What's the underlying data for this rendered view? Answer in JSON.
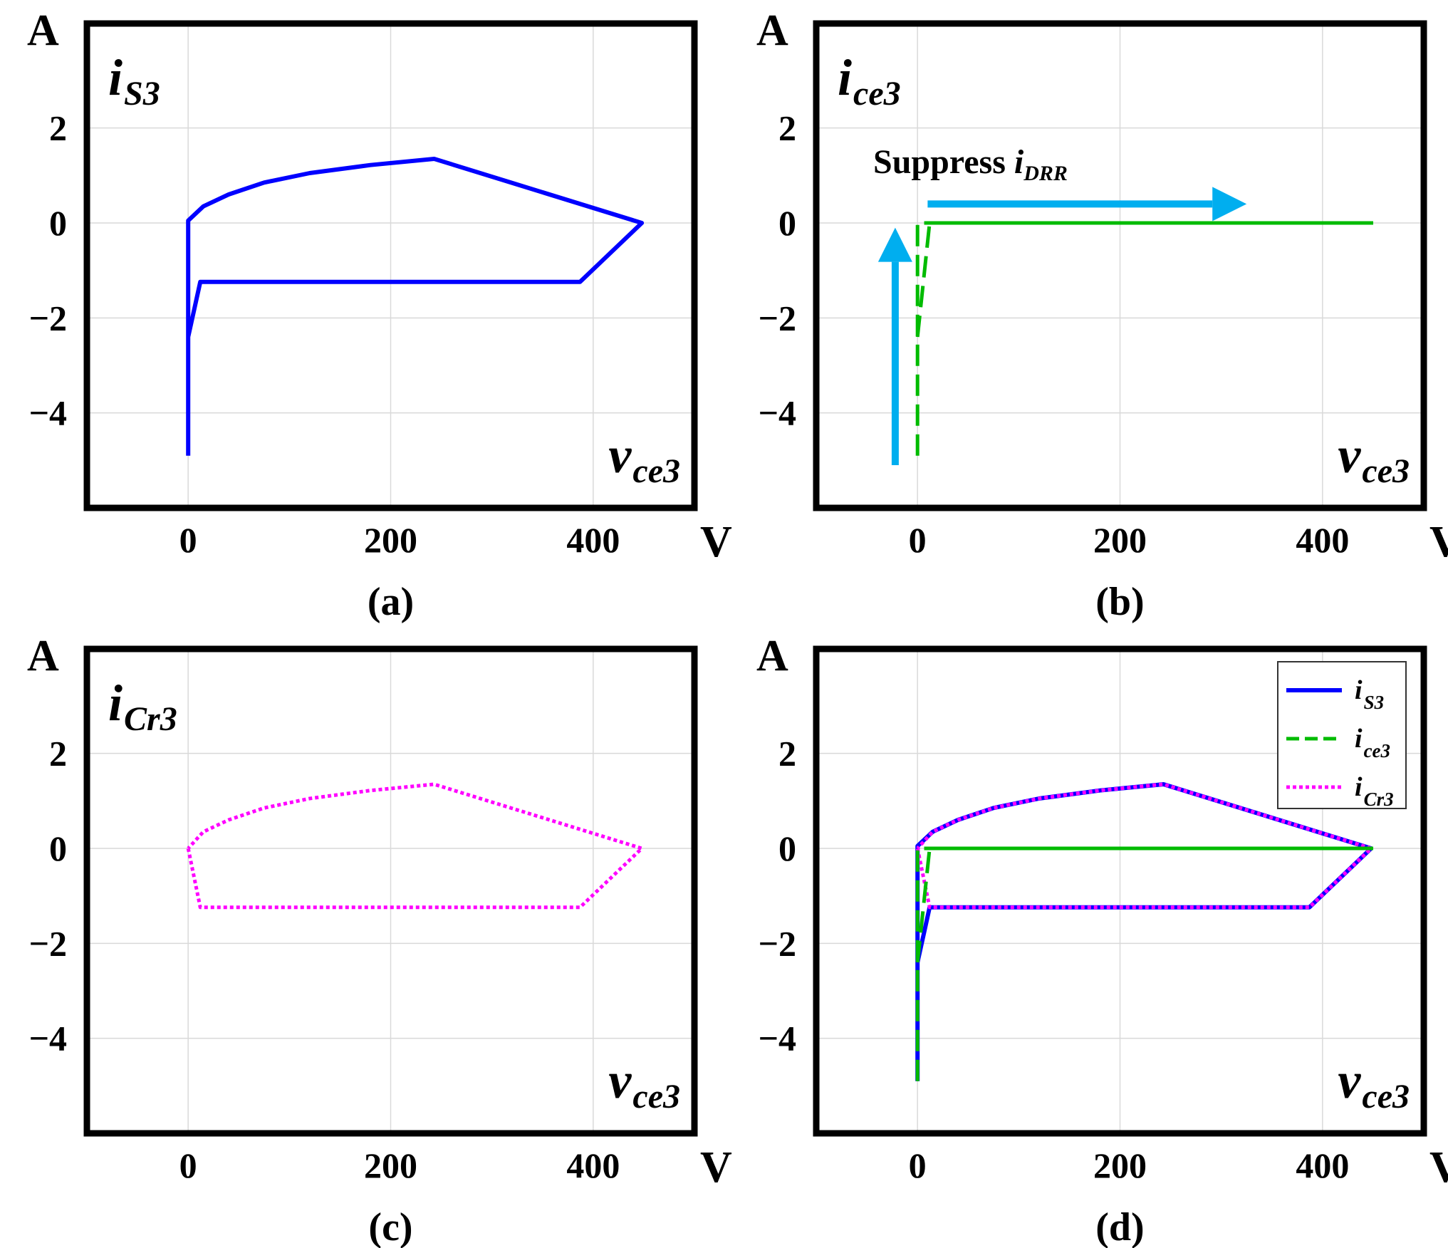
{
  "colors": {
    "i_S3": "#0000FF",
    "i_ce3": "#00BB00",
    "i_Cr3": "#FF00FF",
    "arrow": "#00AEEF"
  },
  "chart_data": [
    {
      "id": "a",
      "type": "line",
      "caption": "(a)",
      "y_unit": "A",
      "x_unit": "V",
      "xlim": [
        -100,
        500
      ],
      "ylim": [
        -6,
        4.2
      ],
      "x_ticks": [
        0,
        200,
        400
      ],
      "x_tick_labels": [
        "0",
        "200",
        "400"
      ],
      "y_ticks": [
        2,
        0,
        -2,
        -4
      ],
      "y_tick_labels": [
        "2",
        "0",
        "−2",
        "−4"
      ],
      "grid": true,
      "ylabel": {
        "main": "i",
        "sub": "S3"
      },
      "xlabel": {
        "main": "v",
        "sub": "ce3"
      },
      "series": [
        {
          "name": "i_S3",
          "style": "solid",
          "color_key": "i_S3",
          "x": [
            0,
            0,
            12,
            387,
            448,
            243,
            180,
            120,
            75,
            40,
            15,
            0,
            0
          ],
          "y": [
            -4.9,
            -2.4,
            -1.24,
            -1.24,
            0,
            1.35,
            1.22,
            1.05,
            0.85,
            0.6,
            0.35,
            0.05,
            -4.9
          ]
        }
      ]
    },
    {
      "id": "b",
      "type": "line",
      "caption": "(b)",
      "y_unit": "A",
      "x_unit": "V",
      "xlim": [
        -100,
        500
      ],
      "ylim": [
        -6,
        4.2
      ],
      "x_ticks": [
        0,
        200,
        400
      ],
      "x_tick_labels": [
        "0",
        "200",
        "400"
      ],
      "y_ticks": [
        2,
        0,
        -2,
        -4
      ],
      "y_tick_labels": [
        "2",
        "0",
        "−2",
        "−4"
      ],
      "grid": true,
      "ylabel": {
        "main": "i",
        "sub": "ce3"
      },
      "xlabel": {
        "main": "v",
        "sub": "ce3"
      },
      "annotation": {
        "text": "Suppress",
        "main": "i",
        "sub": "DRR"
      },
      "arrows": [
        {
          "name": "vertical-arrow",
          "from": [
            -22,
            -5.1
          ],
          "to": [
            -22,
            -0.1
          ]
        },
        {
          "name": "horizontal-arrow",
          "from": [
            10,
            0.4
          ],
          "to": [
            325,
            0.4
          ]
        }
      ],
      "series": [
        {
          "name": "i_ce3",
          "style": "dashed",
          "color_key": "i_ce3",
          "x": [
            0,
            0,
            450
          ],
          "y": [
            -4.9,
            0,
            0
          ]
        },
        {
          "name": "i_ce3",
          "style": "dashed",
          "color_key": "i_ce3",
          "x": [
            0,
            12,
            450
          ],
          "y": [
            -2.4,
            0,
            0
          ]
        }
      ]
    },
    {
      "id": "c",
      "type": "line",
      "caption": "(c)",
      "y_unit": "A",
      "x_unit": "V",
      "xlim": [
        -100,
        500
      ],
      "ylim": [
        -6,
        4.2
      ],
      "x_ticks": [
        0,
        200,
        400
      ],
      "x_tick_labels": [
        "0",
        "200",
        "400"
      ],
      "y_ticks": [
        2,
        0,
        -2,
        -4
      ],
      "y_tick_labels": [
        "2",
        "0",
        "−2",
        "−4"
      ],
      "grid": true,
      "ylabel": {
        "main": "i",
        "sub": "Cr3"
      },
      "xlabel": {
        "main": "v",
        "sub": "ce3"
      },
      "series": [
        {
          "name": "i_Cr3",
          "style": "dotted",
          "color_key": "i_Cr3",
          "x": [
            0,
            12,
            387,
            448,
            243,
            180,
            120,
            75,
            40,
            15,
            0
          ],
          "y": [
            0,
            -1.24,
            -1.24,
            0,
            1.35,
            1.22,
            1.05,
            0.85,
            0.6,
            0.35,
            0
          ]
        }
      ]
    },
    {
      "id": "d",
      "type": "line",
      "caption": "(d)",
      "y_unit": "A",
      "x_unit": "V",
      "xlim": [
        -100,
        500
      ],
      "ylim": [
        -6,
        4.2
      ],
      "x_ticks": [
        0,
        200,
        400
      ],
      "x_tick_labels": [
        "0",
        "200",
        "400"
      ],
      "y_ticks": [
        2,
        0,
        -2,
        -4
      ],
      "y_tick_labels": [
        "2",
        "0",
        "−2",
        "−4"
      ],
      "grid": true,
      "xlabel": {
        "main": "v",
        "sub": "ce3"
      },
      "legend": {
        "placement": "top-right",
        "entries": [
          {
            "main": "i",
            "sub": "S3",
            "style": "solid",
            "color_key": "i_S3"
          },
          {
            "main": "i",
            "sub": "ce3",
            "style": "dashed",
            "color_key": "i_ce3"
          },
          {
            "main": "i",
            "sub": "Cr3",
            "style": "dotted",
            "color_key": "i_Cr3"
          }
        ]
      },
      "series": [
        {
          "name": "i_S3",
          "style": "solid",
          "color_key": "i_S3",
          "x": [
            0,
            0,
            12,
            387,
            448,
            243,
            180,
            120,
            75,
            40,
            15,
            0,
            0
          ],
          "y": [
            -4.9,
            -2.4,
            -1.24,
            -1.24,
            0,
            1.35,
            1.22,
            1.05,
            0.85,
            0.6,
            0.35,
            0.05,
            -4.9
          ]
        },
        {
          "name": "i_Cr3",
          "style": "dotted",
          "color_key": "i_Cr3",
          "x": [
            0,
            12,
            387,
            448,
            243,
            180,
            120,
            75,
            40,
            15,
            0
          ],
          "y": [
            0,
            -1.24,
            -1.24,
            0,
            1.35,
            1.22,
            1.05,
            0.85,
            0.6,
            0.35,
            0
          ]
        },
        {
          "name": "i_ce3",
          "style": "dashed",
          "color_key": "i_ce3",
          "x": [
            0,
            0,
            450
          ],
          "y": [
            -4.9,
            0,
            0
          ]
        },
        {
          "name": "i_ce3",
          "style": "dashed",
          "color_key": "i_ce3",
          "x": [
            0,
            12,
            450
          ],
          "y": [
            -2.4,
            0,
            0
          ]
        }
      ]
    }
  ]
}
